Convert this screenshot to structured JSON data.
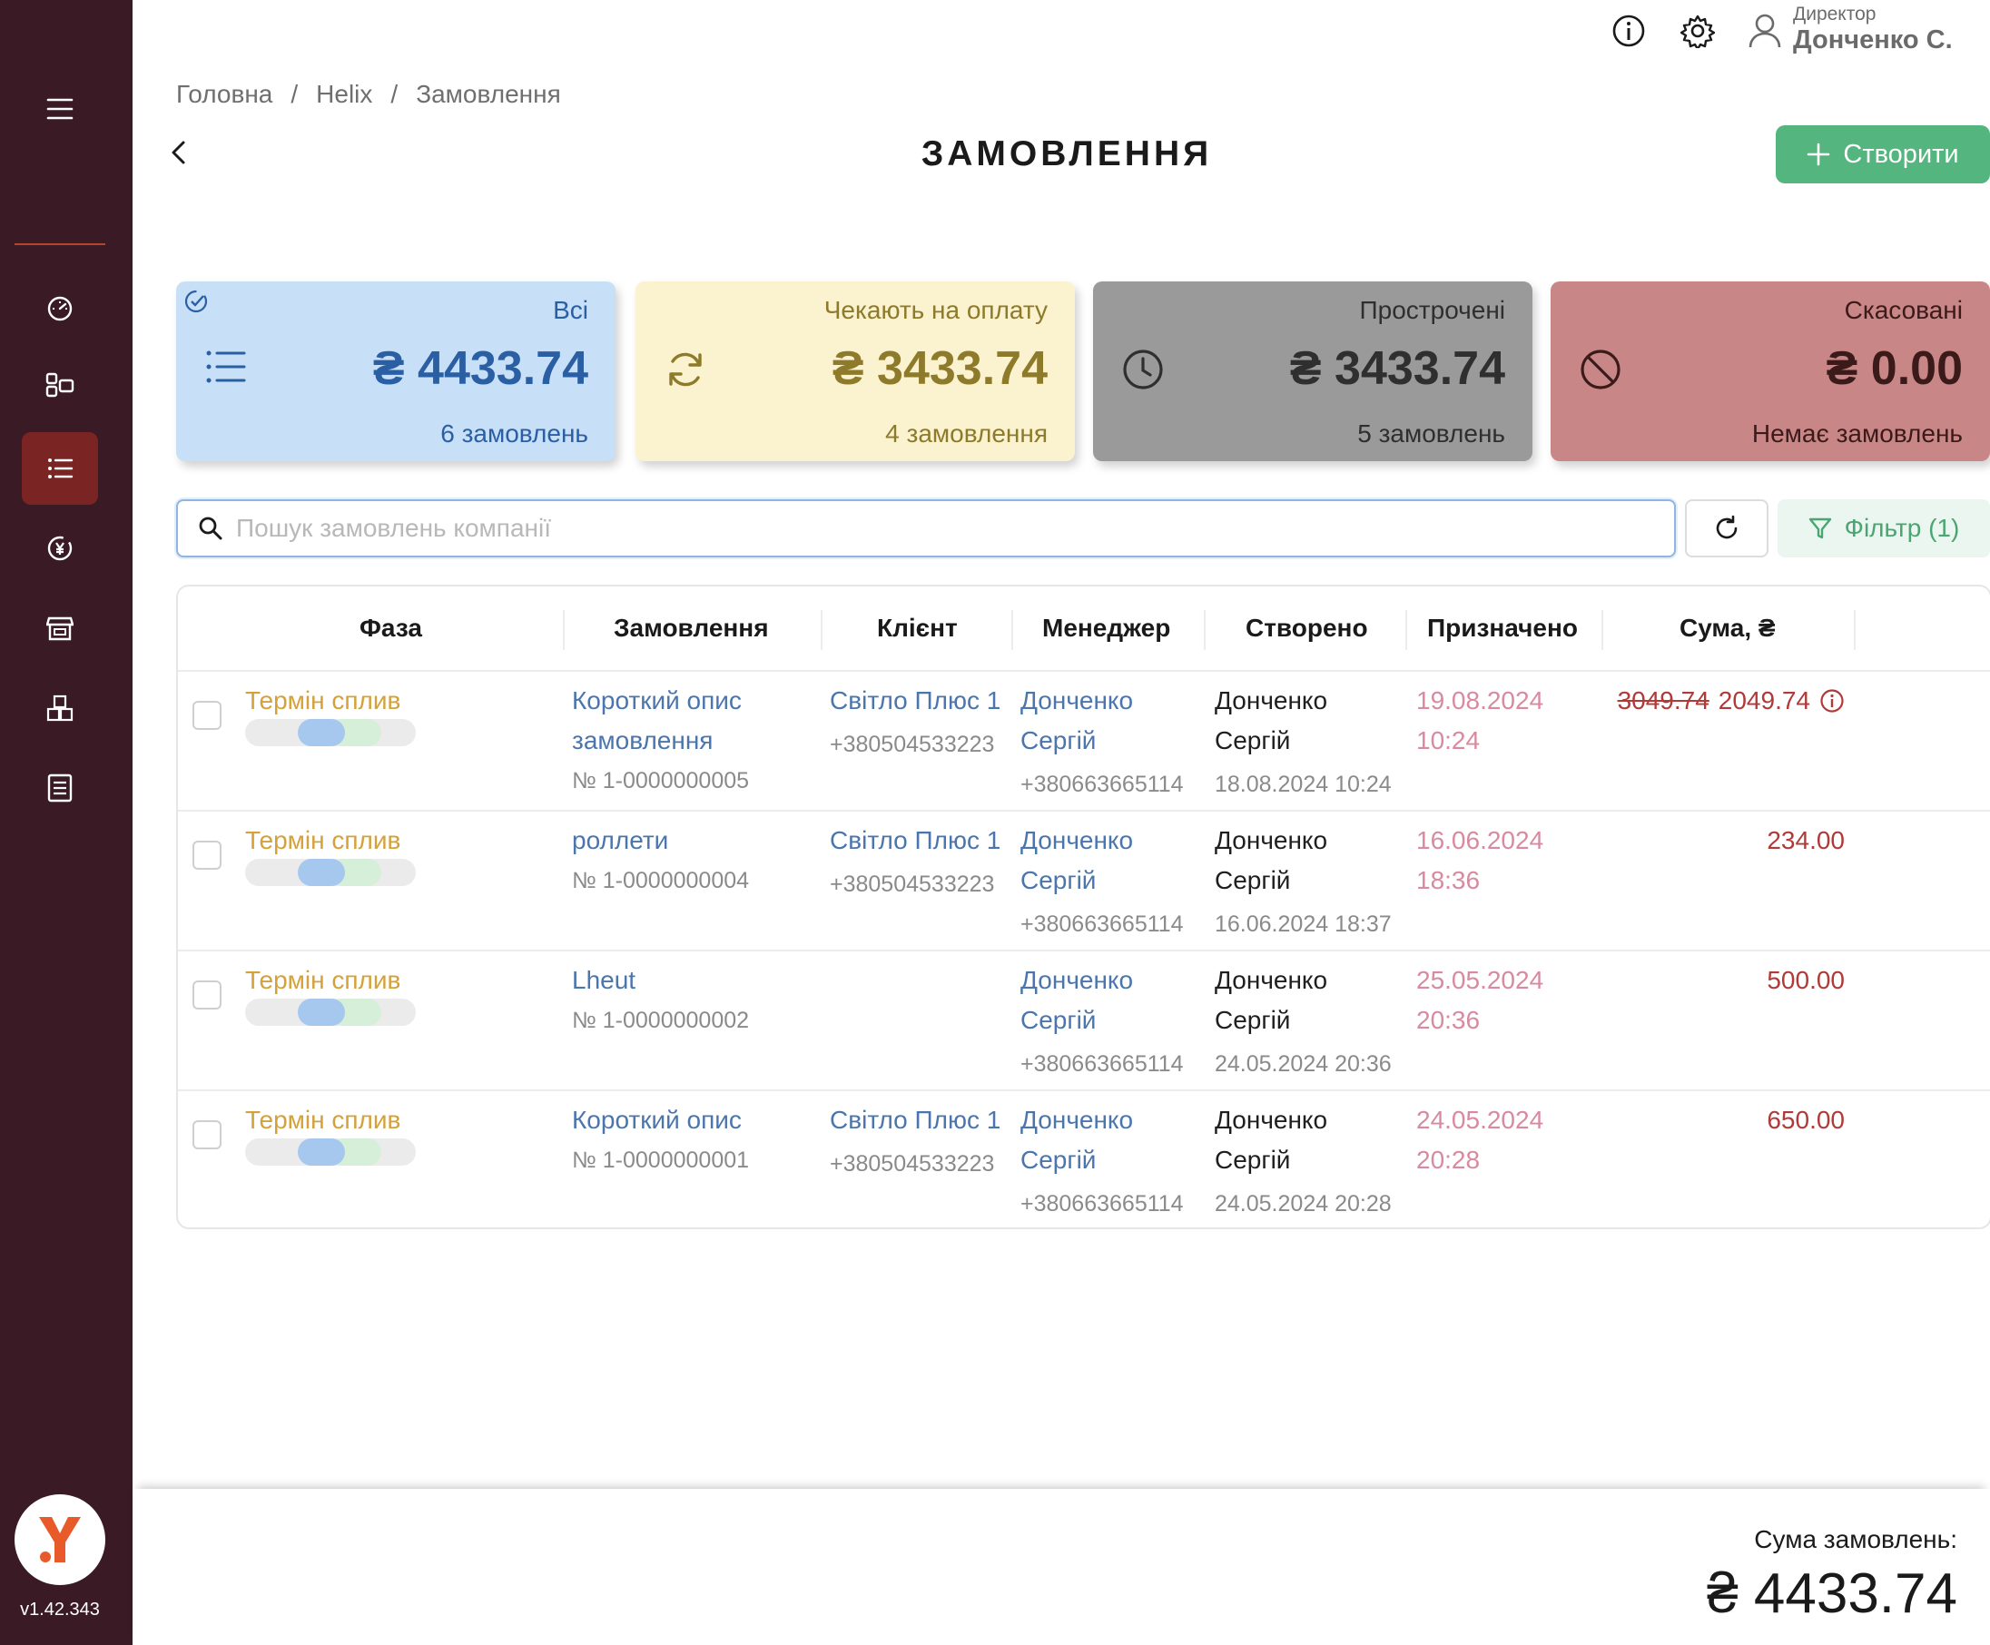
{
  "app": {
    "version": "v1.42.343"
  },
  "user": {
    "role": "Директор",
    "name": "Донченко С."
  },
  "breadcrumb": {
    "home": "Головна",
    "section": "Helix",
    "current": "Замовлення"
  },
  "page": {
    "title": "ЗАМОВЛЕННЯ",
    "create_label": "Створити"
  },
  "cards": [
    {
      "label": "Всі",
      "amount": "₴ 4433.74",
      "count": "6 замовлень",
      "color": "#c7dff7",
      "text_color": "#2b5fa3"
    },
    {
      "label": "Чекають на оплату",
      "amount": "₴ 3433.74",
      "count": "4 замовлення",
      "color": "#fbf2cf",
      "text_color": "#8d7a2a"
    },
    {
      "label": "Прострочені",
      "amount": "₴ 3433.74",
      "count": "5 замовлень",
      "color": "#9a9a9a",
      "text_color": "#2f2f2f"
    },
    {
      "label": "Скасовані",
      "amount": "₴ 0.00",
      "count": "Немає замовлень",
      "color": "#c98686",
      "text_color": "#3b1a1a"
    }
  ],
  "search": {
    "placeholder": "Пошук замовлень компанії",
    "value": ""
  },
  "filter": {
    "label": "Фільтр (1)"
  },
  "table": {
    "columns": [
      "Фаза",
      "Замовлення",
      "Клієнт",
      "Менеджер",
      "Створено",
      "Призначено",
      "Сума, ₴"
    ],
    "rows": [
      {
        "phase": "Термін сплив",
        "order_title_1": "Короткий опис",
        "order_title_2": "замовлення",
        "order_number": "№ 1-0000000005",
        "client_name": "Світло Плюс 1",
        "client_phone": "+380504533223",
        "manager_first": "Донченко",
        "manager_last": "Сергій",
        "manager_phone": "+380663665114",
        "created_first": "Донченко",
        "created_last": "Сергій",
        "created_at": "18.08.2024 10:24",
        "assigned_date": "19.08.2024",
        "assigned_time": "10:24",
        "sum_old": "3049.74",
        "sum": "2049.74"
      },
      {
        "phase": "Термін сплив",
        "order_title_1": "роллети",
        "order_number": "№ 1-0000000004",
        "client_name": "Світло Плюс 1",
        "client_phone": "+380504533223",
        "manager_first": "Донченко",
        "manager_last": "Сергій",
        "manager_phone": "+380663665114",
        "created_first": "Донченко",
        "created_last": "Сергій",
        "created_at": "16.06.2024 18:37",
        "assigned_date": "16.06.2024",
        "assigned_time": "18:36",
        "sum": "234.00"
      },
      {
        "phase": "Термін сплив",
        "order_title_1": "Lheut",
        "order_number": "№ 1-0000000002",
        "manager_first": "Донченко",
        "manager_last": "Сергій",
        "manager_phone": "+380663665114",
        "created_first": "Донченко",
        "created_last": "Сергій",
        "created_at": "24.05.2024 20:36",
        "assigned_date": "25.05.2024",
        "assigned_time": "20:36",
        "sum": "500.00"
      },
      {
        "phase": "Термін сплив",
        "order_title_1": "Короткий опис",
        "order_number": "№ 1-0000000001",
        "client_name": "Світло Плюс 1",
        "client_phone": "+380504533223",
        "manager_first": "Донченко",
        "manager_last": "Сергій",
        "manager_phone": "+380663665114",
        "created_first": "Донченко",
        "created_last": "Сергій",
        "created_at": "24.05.2024 20:28",
        "assigned_date": "24.05.2024",
        "assigned_time": "20:28",
        "sum": "650.00"
      }
    ]
  },
  "footer": {
    "label": "Сума замовлень:",
    "amount": "₴ 4433.74"
  },
  "colors": {
    "sidebar": "#3a1a24",
    "active": "#7a2423",
    "accent_green": "#55b57e"
  }
}
